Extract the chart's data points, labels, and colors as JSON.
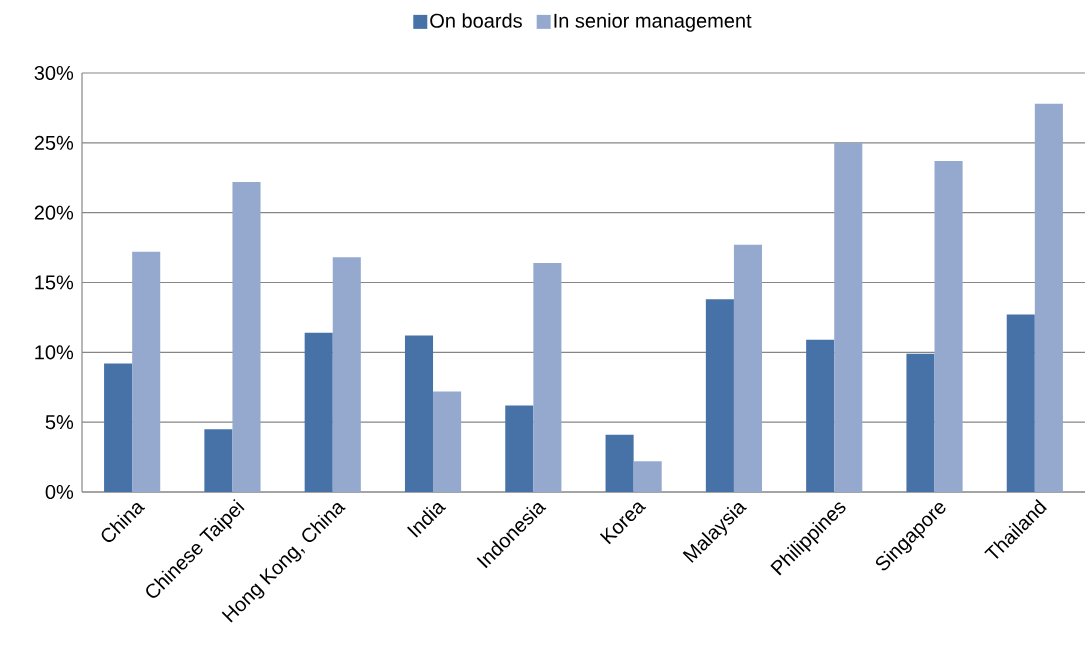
{
  "chart_data": {
    "type": "bar",
    "categories": [
      "China",
      "Chinese Taipei",
      "Hong Kong, China",
      "India",
      "Indonesia",
      "Korea",
      "Malaysia",
      "Philippines",
      "Singapore",
      "Thailand"
    ],
    "series": [
      {
        "name": "On boards",
        "color": "#4672a7",
        "values": [
          9.2,
          4.5,
          11.4,
          11.2,
          6.2,
          4.1,
          13.8,
          10.9,
          9.9,
          12.7
        ]
      },
      {
        "name": "In senior management",
        "color": "#95a9cf",
        "values": [
          17.2,
          22.2,
          16.8,
          7.2,
          16.4,
          2.2,
          17.7,
          25.0,
          23.7,
          27.8
        ]
      }
    ],
    "ylim": [
      0,
      30
    ],
    "yticks": [
      {
        "value": 0,
        "label": "0%"
      },
      {
        "value": 5,
        "label": "5%"
      },
      {
        "value": 10,
        "label": "10%"
      },
      {
        "value": 15,
        "label": "15%"
      },
      {
        "value": 20,
        "label": "20%"
      },
      {
        "value": 25,
        "label": "25%"
      },
      {
        "value": 30,
        "label": "30%"
      }
    ],
    "grid": "y",
    "legend": "top"
  }
}
